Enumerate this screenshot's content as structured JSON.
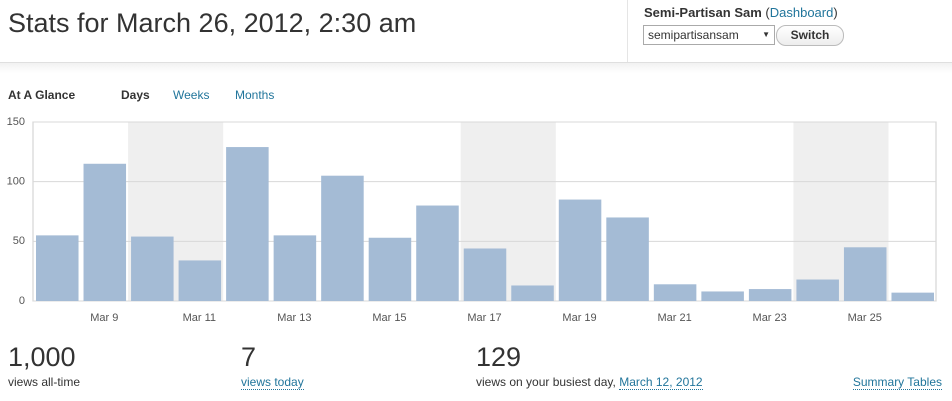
{
  "header": {
    "title": "Stats for March 26, 2012, 2:30 am",
    "user_line": [
      "Semi-Partisan Sam",
      "(",
      "Dashboard",
      ")"
    ],
    "blog_select": "semipartisansam",
    "switch": "Switch"
  },
  "tabs": {
    "label": "At A Glance",
    "items": [
      "Days",
      "Weeks",
      "Months"
    ]
  },
  "chart_data": {
    "type": "bar",
    "categories": [
      null,
      "Mar 9",
      null,
      "Mar 11",
      null,
      "Mar 13",
      null,
      "Mar 15",
      null,
      "Mar 17",
      null,
      "Mar 19",
      null,
      "Mar 21",
      null,
      "Mar 23",
      null,
      "Mar 25",
      null
    ],
    "values": [
      55,
      115,
      54,
      34,
      129,
      55,
      105,
      53,
      80,
      44,
      13,
      85,
      70,
      14,
      8,
      10,
      18,
      45,
      7
    ],
    "color": "#a4bbd5",
    "ylim": [
      0,
      150
    ],
    "yticks": [
      0,
      50,
      100,
      150
    ],
    "grid": true
  },
  "summary": [
    {
      "value": "1,000",
      "label": "views all-time"
    },
    {
      "value": "7",
      "label": "views today"
    },
    {
      "value": "129",
      "label": "views on your busiest day,",
      "link": "March 12, 2012"
    }
  ],
  "summary_link": "Summary Tables"
}
